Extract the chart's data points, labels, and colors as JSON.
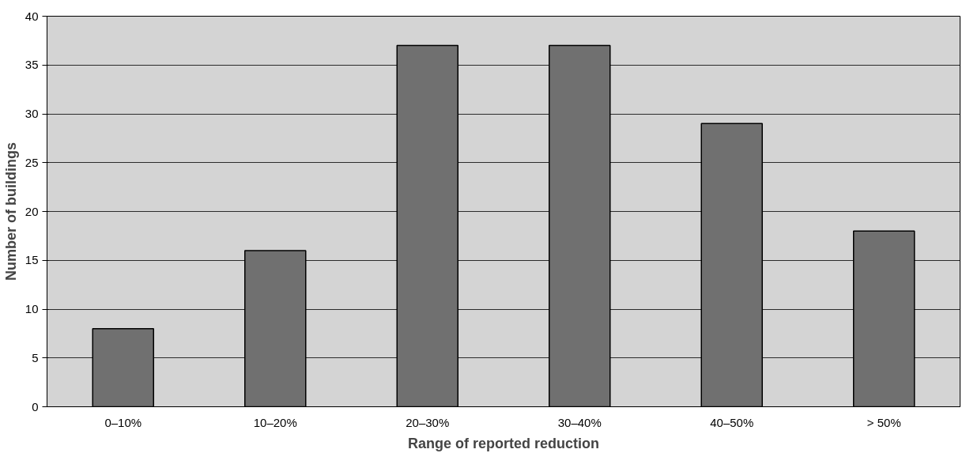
{
  "chart_data": {
    "type": "bar",
    "xlabel": "Range of reported reduction",
    "ylabel": "Number of buildings",
    "categories": [
      "0–10%",
      "10–20%",
      "20–30%",
      "30–40%",
      "40–50%",
      "> 50%"
    ],
    "values": [
      8,
      16,
      37,
      37,
      29,
      18
    ],
    "color": "#707070",
    "ylim": [
      0,
      40
    ],
    "yticks": [
      0,
      5,
      10,
      15,
      20,
      25,
      30,
      35,
      40
    ],
    "grid": "y"
  }
}
